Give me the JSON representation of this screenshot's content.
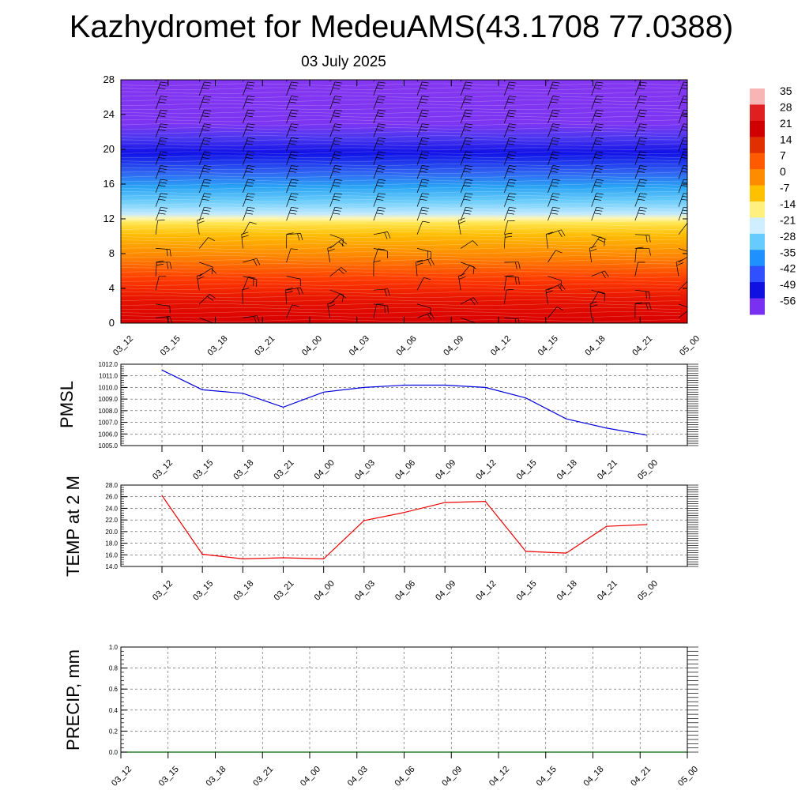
{
  "title": "Kazhydromet for MedeuAMS(43.1708 77.0388)",
  "subtitle": "03 July 2025",
  "time_labels": [
    "03_12",
    "03_15",
    "03_18",
    "03_21",
    "04_00",
    "04_03",
    "04_06",
    "04_09",
    "04_12",
    "04_15",
    "04_18",
    "04_21",
    "05_00"
  ],
  "chart_data": [
    {
      "type": "heatmap",
      "title": "",
      "description_of_field": "temperature cross-section with wind barbs",
      "x": [
        "03_12",
        "03_15",
        "03_18",
        "03_21",
        "04_00",
        "04_03",
        "04_06",
        "04_09",
        "04_12",
        "04_15",
        "04_18",
        "04_21",
        "05_00"
      ],
      "y_ticks": [
        0,
        4,
        8,
        12,
        16,
        20,
        24,
        28
      ],
      "ylim": [
        0,
        28
      ],
      "colorbar": {
        "labels": [
          "35",
          "28",
          "21",
          "14",
          "7",
          "0",
          "-7",
          "-14",
          "-21",
          "-28",
          "-35",
          "-42",
          "-49",
          "-56"
        ],
        "colors": [
          "#f7b5b5",
          "#e02020",
          "#d10000",
          "#e03000",
          "#ff5a00",
          "#ff8c00",
          "#ffc000",
          "#fff080",
          "#cfeeff",
          "#66ccff",
          "#1e90ff",
          "#3050ff",
          "#1010e0",
          "#7a30f0"
        ]
      },
      "temperature_profile": [
        {
          "height": 0,
          "value": 30
        },
        {
          "height": 4,
          "value": 22
        },
        {
          "height": 8,
          "value": 8
        },
        {
          "height": 12,
          "value": -7
        },
        {
          "height": 13.5,
          "value": -14
        },
        {
          "height": 16,
          "value": -35
        },
        {
          "height": 20,
          "value": -56
        },
        {
          "height": 22,
          "value": -49
        },
        {
          "height": 28,
          "value": -56
        }
      ],
      "colors": {
        "cold_top": "#8a2be2",
        "deep_blue": "#1515e6",
        "cyan": "#5fc8f5",
        "yellow": "#fff59a",
        "orange": "#ff9000",
        "red": "#e01010"
      }
    },
    {
      "type": "line",
      "ylabel": "PMSL",
      "categories": [
        "03_12",
        "03_15",
        "03_18",
        "03_21",
        "04_00",
        "04_03",
        "04_06",
        "04_09",
        "04_12",
        "04_15",
        "04_18",
        "04_21",
        "05_00"
      ],
      "y_ticks": [
        "1005.0",
        "1006.0",
        "1007.0",
        "1008.0",
        "1009.0",
        "1010.0",
        "1011.0",
        "1012.0"
      ],
      "ylim": [
        1005,
        1012
      ],
      "series": [
        {
          "values": [
            1011.5,
            1009.8,
            1009.5,
            1008.3,
            1009.6,
            1010.0,
            1010.2,
            1010.2,
            1010.0,
            1009.1,
            1007.3,
            1006.5,
            1005.9
          ],
          "color": "#0000dd"
        }
      ],
      "grid": true
    },
    {
      "type": "line",
      "ylabel": "TEMP at 2 M",
      "categories": [
        "03_12",
        "03_15",
        "03_18",
        "03_21",
        "04_00",
        "04_03",
        "04_06",
        "04_09",
        "04_12",
        "04_15",
        "04_18",
        "04_21",
        "05_00"
      ],
      "y_ticks": [
        "14.0",
        "16.0",
        "18.0",
        "20.0",
        "22.0",
        "24.0",
        "26.0",
        "28.0"
      ],
      "ylim": [
        14,
        28
      ],
      "series": [
        {
          "values": [
            26.2,
            16.1,
            15.3,
            15.5,
            15.3,
            21.9,
            23.3,
            25.0,
            25.2,
            16.6,
            16.3,
            20.9,
            21.2
          ],
          "color": "#ee0000"
        }
      ],
      "grid": true
    },
    {
      "type": "line",
      "ylabel": "PRECIP, mm",
      "categories": [
        "03_12",
        "03_15",
        "03_18",
        "03_21",
        "04_00",
        "04_03",
        "04_06",
        "04_09",
        "04_12",
        "04_15",
        "04_18",
        "04_21",
        "05_00"
      ],
      "y_ticks": [
        "0.0",
        "0.2",
        "0.4",
        "0.6",
        "0.8",
        "1.0"
      ],
      "ylim": [
        0,
        1
      ],
      "series": [
        {
          "values": [
            0,
            0,
            0,
            0,
            0,
            0,
            0,
            0,
            0,
            0,
            0,
            0,
            0
          ],
          "color": "#006400"
        }
      ],
      "grid": true
    }
  ]
}
